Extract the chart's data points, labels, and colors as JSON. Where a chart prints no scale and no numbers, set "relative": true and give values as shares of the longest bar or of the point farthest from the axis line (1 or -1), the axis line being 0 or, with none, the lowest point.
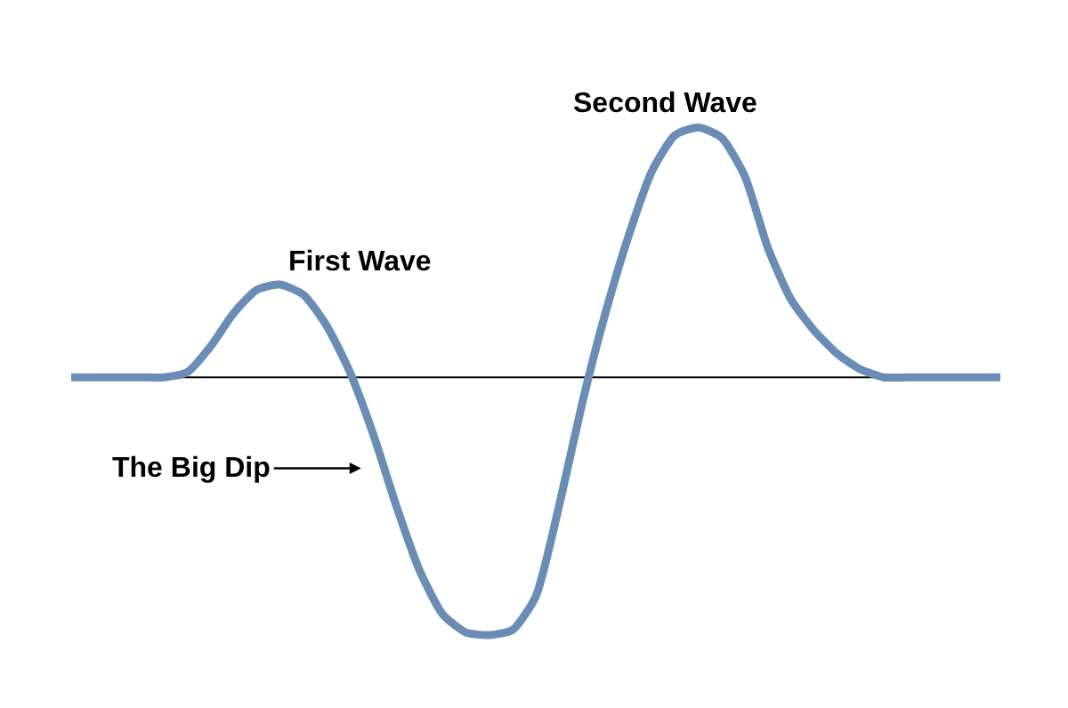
{
  "chart_data": {
    "type": "line",
    "relative": true,
    "categories": [
      null,
      null,
      null,
      null,
      null,
      null,
      null,
      null,
      null,
      null,
      null,
      null,
      null,
      null,
      null,
      null,
      null,
      null,
      null,
      null,
      null,
      null,
      null,
      null,
      null,
      null,
      null,
      null,
      null,
      null,
      null,
      null,
      null,
      null,
      null,
      null,
      null,
      null,
      null,
      null,
      null
    ],
    "series": [
      {
        "color": "#6b8db5",
        "values": [
          0,
          0,
          0,
          0,
          0,
          0.02,
          0.12,
          0.25,
          0.34,
          0.36,
          0.32,
          0.2,
          0.02,
          -0.22,
          -0.5,
          -0.75,
          -0.92,
          -0.99,
          -1.0,
          -0.98,
          -0.85,
          -0.5,
          -0.1,
          0.25,
          0.55,
          0.8,
          0.94,
          0.97,
          0.93,
          0.78,
          0.5,
          0.3,
          0.18,
          0.09,
          0.03,
          0,
          0,
          0,
          0,
          0,
          0
        ]
      }
    ],
    "annotations": [
      "First Wave",
      "Second Wave",
      "The Big Dip"
    ],
    "marker": "none",
    "line_style": "solid"
  }
}
